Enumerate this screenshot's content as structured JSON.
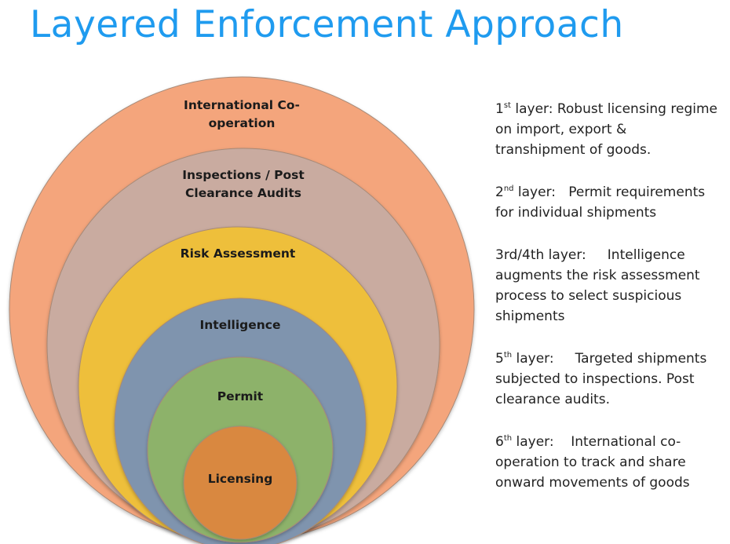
{
  "title": "Layered Enforcement Approach",
  "layers": [
    {
      "label_lines": [
        "International Co-",
        "operation"
      ],
      "color": "#f4a57c"
    },
    {
      "label_lines": [
        "Inspections / Post",
        "Clearance Audits"
      ],
      "color": "#c9aba0"
    },
    {
      "label_lines": [
        "Risk Assessment"
      ],
      "color": "#eebf3b"
    },
    {
      "label_lines": [
        "Intelligence"
      ],
      "color": "#7f94ae"
    },
    {
      "label_lines": [
        "Permit"
      ],
      "color": "#8db26a"
    },
    {
      "label_lines": [
        "Licensing"
      ],
      "color": "#d9883f"
    }
  ],
  "notes": [
    {
      "num": "1",
      "sup": "st",
      "head": " layer: ",
      "lines": [
        "Robust licensing regime",
        "on import, export &",
        "transhipment of goods."
      ]
    },
    {
      "num": "2",
      "sup": "nd",
      "head": " layer:   ",
      "lines": [
        "Permit requirements",
        "for individual shipments"
      ]
    },
    {
      "num": "3rd/4th",
      "sup": "",
      "head": " layer:     ",
      "lines": [
        "Intelligence",
        "augments the risk assessment",
        "process to select suspicious",
        "shipments"
      ]
    },
    {
      "num": "5",
      "sup": "th",
      "head": " layer:     ",
      "lines": [
        "Targeted shipments",
        "subjected to inspections. Post",
        "clearance audits."
      ]
    },
    {
      "num": "6",
      "sup": "th",
      "head": " layer:    ",
      "lines": [
        "International co-",
        "operation to track and share",
        "onward movements of goods"
      ]
    }
  ]
}
